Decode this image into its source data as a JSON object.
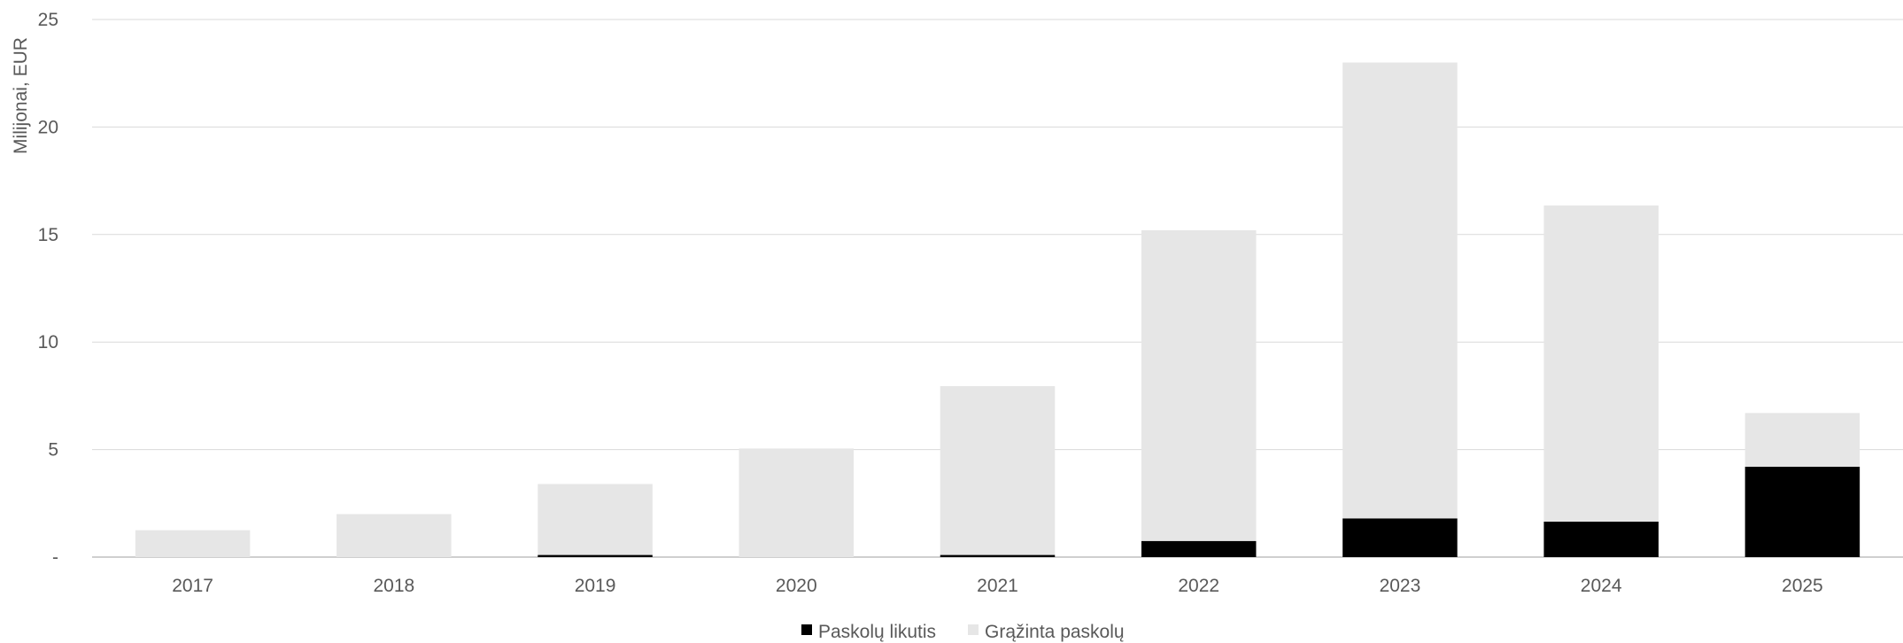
{
  "chart_data": {
    "type": "bar",
    "stacked": true,
    "categories": [
      "2017",
      "2018",
      "2019",
      "2020",
      "2021",
      "2022",
      "2023",
      "2024",
      "2025"
    ],
    "series": [
      {
        "name": "Paskolų likutis",
        "color": "#000000",
        "values": [
          0,
          0,
          0.1,
          0,
          0.1,
          0.75,
          1.8,
          1.65,
          4.2
        ]
      },
      {
        "name": "Grąžinta paskolų",
        "color": "#e6e6e6",
        "values": [
          1.25,
          2.0,
          3.3,
          5.05,
          7.85,
          14.45,
          21.2,
          14.7,
          2.5
        ]
      }
    ],
    "ylabel": "Milijonai, EUR",
    "xlabel": "",
    "ylim": [
      0,
      25
    ],
    "yticks": [
      {
        "value": 0,
        "label": "-"
      },
      {
        "value": 5,
        "label": "5"
      },
      {
        "value": 10,
        "label": "10"
      },
      {
        "value": 15,
        "label": "15"
      },
      {
        "value": 20,
        "label": "20"
      },
      {
        "value": 25,
        "label": "25"
      }
    ],
    "grid": true,
    "legend_position": "bottom-center"
  }
}
